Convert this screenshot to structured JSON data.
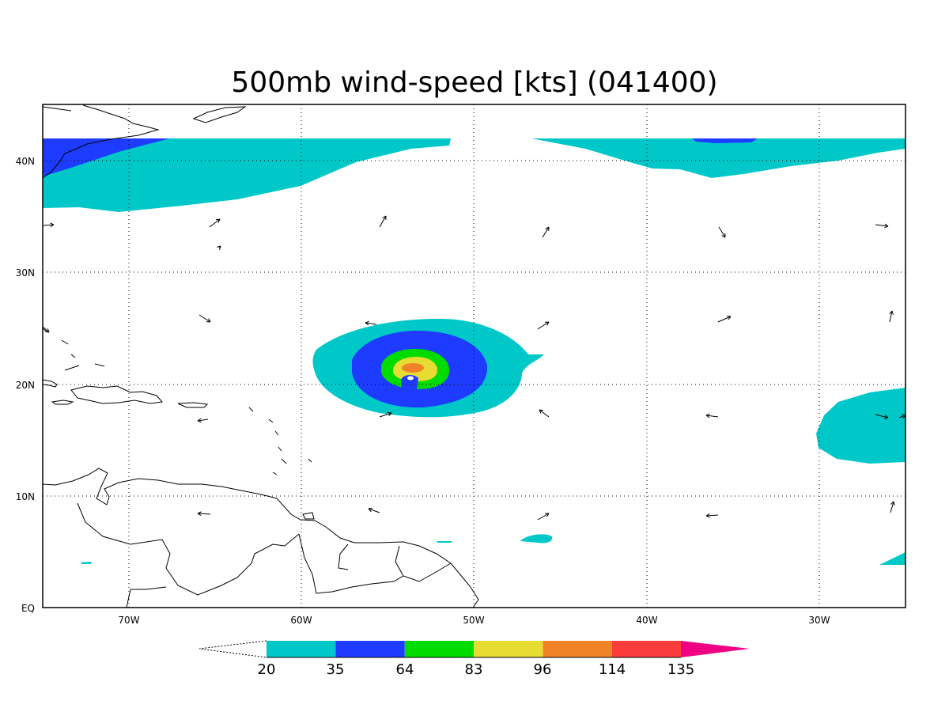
{
  "title": "500mb wind-speed [kts] (041400)",
  "map": {
    "projection": "lat-lon",
    "lon_range": [
      -75,
      -25
    ],
    "lat_range": [
      0,
      45
    ],
    "x_ticks": [
      "70W",
      "60W",
      "50W",
      "40W",
      "30W"
    ],
    "y_ticks": [
      "EQ",
      "10N",
      "20N",
      "30N",
      "40N"
    ],
    "grid": "dotted"
  },
  "colorbar": {
    "levels": [
      "20",
      "35",
      "64",
      "83",
      "96",
      "114",
      "135"
    ],
    "colors": [
      "#00c8c8",
      "#1e3cff",
      "#00dc00",
      "#e6dc32",
      "#f08228",
      "#fa3c3c",
      "#f00082"
    ],
    "under_color": "#ffffff"
  }
}
